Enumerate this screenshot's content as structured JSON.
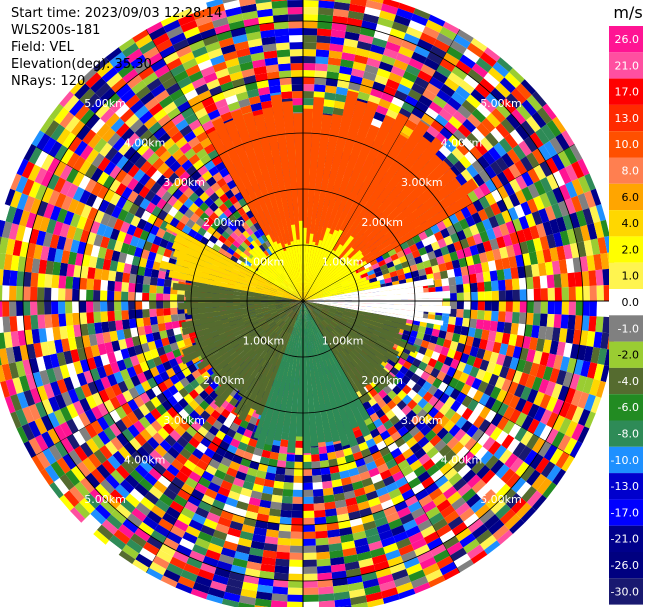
{
  "info": {
    "start_time": "Start time: 2023/09/03 12:28:14",
    "site": "WLS200s-181",
    "field": "Field: VEL",
    "elevation": "Elevation(deg): 35.30",
    "nrays": "NRays: 120"
  },
  "colorbar": {
    "unit": "m/s",
    "ticks": [
      "26.0",
      "21.0",
      "17.0",
      "13.0",
      "10.0",
      "8.0",
      "6.0",
      "4.0",
      "2.0",
      "1.0",
      "0.0",
      "-1.0",
      "-2.0",
      "-4.0",
      "-6.0",
      "-8.0",
      "-10.0",
      "-13.0",
      "-17.0",
      "-21.0",
      "-26.0",
      "-30.0"
    ],
    "colors": [
      "#ff1493",
      "#ff4fa0",
      "#ff0000",
      "#ff2a00",
      "#ff5000",
      "#ff7f50",
      "#ffa500",
      "#ffd700",
      "#ffff00",
      "#fff44f",
      "#ffffff",
      "#808080",
      "#9acd32",
      "#556b2f",
      "#228b22",
      "#2e8b57",
      "#1e90ff",
      "#0000cd",
      "#0000ff",
      "#00008b",
      "#000080",
      "#191970"
    ]
  },
  "chart_data": {
    "type": "ppi",
    "field": "VEL",
    "units": "m/s",
    "nrays": 120,
    "range_rings_km": [
      1.0,
      2.0,
      3.0,
      4.0,
      5.0
    ],
    "ring_labels": [
      "1.00km",
      "2.00km",
      "3.00km",
      "4.00km",
      "5.00km"
    ],
    "range_max_km": 5.6,
    "velocity_scale": [
      -30.0,
      26.0
    ],
    "sectors": [
      {
        "azimuth_from_deg": 330,
        "azimuth_to_deg": 60,
        "range_to_km": 3.6,
        "velocity": 10.0
      },
      {
        "azimuth_from_deg": 300,
        "azimuth_to_deg": 80,
        "range_to_km": 1.2,
        "velocity": 2.0
      },
      {
        "azimuth_from_deg": 80,
        "azimuth_to_deg": 100,
        "range_to_km": 2.4,
        "velocity": 0.0
      },
      {
        "azimuth_from_deg": 100,
        "azimuth_to_deg": 150,
        "range_to_km": 2.0,
        "velocity": -4.0
      },
      {
        "azimuth_from_deg": 150,
        "azimuth_to_deg": 200,
        "range_to_km": 2.6,
        "velocity": -8.0
      },
      {
        "azimuth_from_deg": 200,
        "azimuth_to_deg": 280,
        "range_to_km": 2.2,
        "velocity": -4.0
      },
      {
        "azimuth_from_deg": 280,
        "azimuth_to_deg": 300,
        "range_to_km": 2.6,
        "velocity": 4.0
      }
    ]
  }
}
